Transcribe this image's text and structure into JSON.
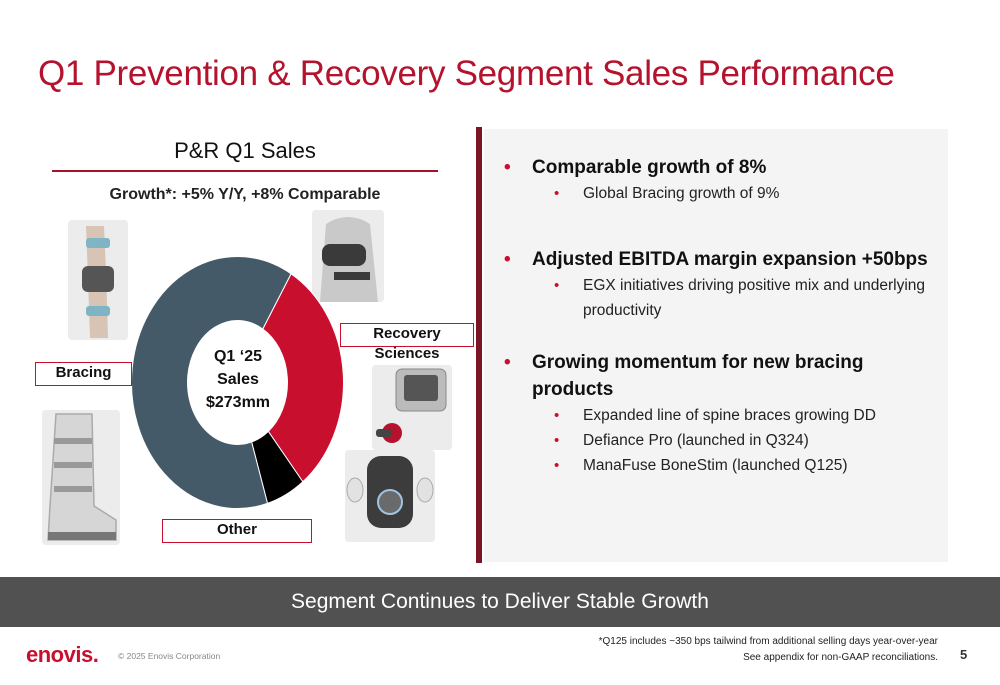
{
  "title": "Q1 Prevention & Recovery Segment Sales Performance",
  "left": {
    "title": "P&R Q1 Sales",
    "growth": "Growth*: +5% Y/Y, +8% Comparable",
    "center_label": [
      "Q1 ‘25",
      "Sales",
      "$273mm"
    ],
    "labels": {
      "bracing": "Bracing",
      "recovery": "Recovery Sciences",
      "other": "Other"
    }
  },
  "chart_data": {
    "type": "pie",
    "categories": [
      "Bracing",
      "Recovery Sciences",
      "Other"
    ],
    "values": [
      63,
      31,
      6
    ],
    "colors": [
      "#455a68",
      "#c8102e",
      "#000000"
    ]
  },
  "right": {
    "bullets": [
      {
        "text": "Comparable growth of 8%",
        "subs": [
          "Global Bracing growth of 9%"
        ]
      },
      {
        "text": "Adjusted EBITDA margin expansion +50bps",
        "subs": [
          "EGX initiatives driving positive mix and underlying productivity"
        ]
      },
      {
        "text": "Growing momentum for new bracing products",
        "subs": [
          "Expanded line of spine braces growing DD",
          "Defiance Pro (launched in Q324)",
          "ManaFuse BoneStim (launched Q125)"
        ]
      }
    ]
  },
  "banner": "Segment Continues to Deliver Stable Growth",
  "footer": {
    "logo": "enovis.",
    "copyright": "© 2025 Enovis Corporation",
    "footnote1": "*Q125 includes ~350 bps tailwind from additional selling days year-over-year",
    "footnote2": "See appendix for non-GAAP reconciliations.",
    "page": "5"
  },
  "colors": {
    "accent": "#c8102e",
    "slate": "#455a68",
    "banner": "#515151"
  }
}
